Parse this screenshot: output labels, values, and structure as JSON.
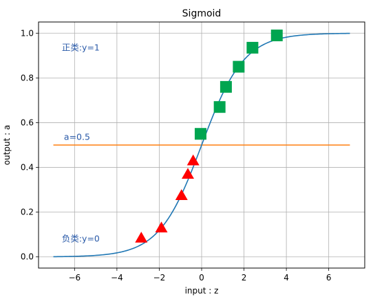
{
  "chart_data": {
    "type": "line",
    "title": "Sigmoid",
    "xlabel": "input : z",
    "ylabel": "output : a",
    "xlim": [
      -7.7,
      7.7
    ],
    "ylim": [
      -0.05,
      1.05
    ],
    "xticks": [
      -6,
      -4,
      -2,
      0,
      2,
      4,
      6
    ],
    "yticks": [
      0.0,
      0.2,
      0.4,
      0.6,
      0.8,
      1.0
    ],
    "xtick_labels": [
      "−6",
      "−4",
      "−2",
      "0",
      "2",
      "4",
      "6"
    ],
    "ytick_labels": [
      "0.0",
      "0.2",
      "0.4",
      "0.6",
      "0.8",
      "1.0"
    ],
    "grid": true,
    "curve": {
      "function": "sigmoid",
      "x_range": [
        -7,
        7
      ],
      "color": "#1f77b4"
    },
    "threshold": {
      "y": 0.5,
      "x_range": [
        -7,
        7
      ],
      "color": "#ff7f0e"
    },
    "positive_points": {
      "color": "#00a550",
      "marker": "square",
      "points": [
        {
          "x": -0.05,
          "y": 0.55
        },
        {
          "x": 0.85,
          "y": 0.67
        },
        {
          "x": 1.15,
          "y": 0.76
        },
        {
          "x": 1.75,
          "y": 0.85
        },
        {
          "x": 2.4,
          "y": 0.935
        },
        {
          "x": 3.55,
          "y": 0.99
        }
      ]
    },
    "negative_points": {
      "color": "#ff0000",
      "marker": "triangle",
      "points": [
        {
          "x": -2.85,
          "y": 0.085
        },
        {
          "x": -1.9,
          "y": 0.13
        },
        {
          "x": -0.95,
          "y": 0.275
        },
        {
          "x": -0.65,
          "y": 0.37
        },
        {
          "x": -0.4,
          "y": 0.43
        }
      ]
    },
    "annotations": [
      {
        "text": "正类:y=1",
        "x": -6.6,
        "y": 0.935
      },
      {
        "text": "a=0.5",
        "x": -6.5,
        "y": 0.535
      },
      {
        "text": "负类:y=0",
        "x": -6.6,
        "y": 0.08
      }
    ]
  }
}
